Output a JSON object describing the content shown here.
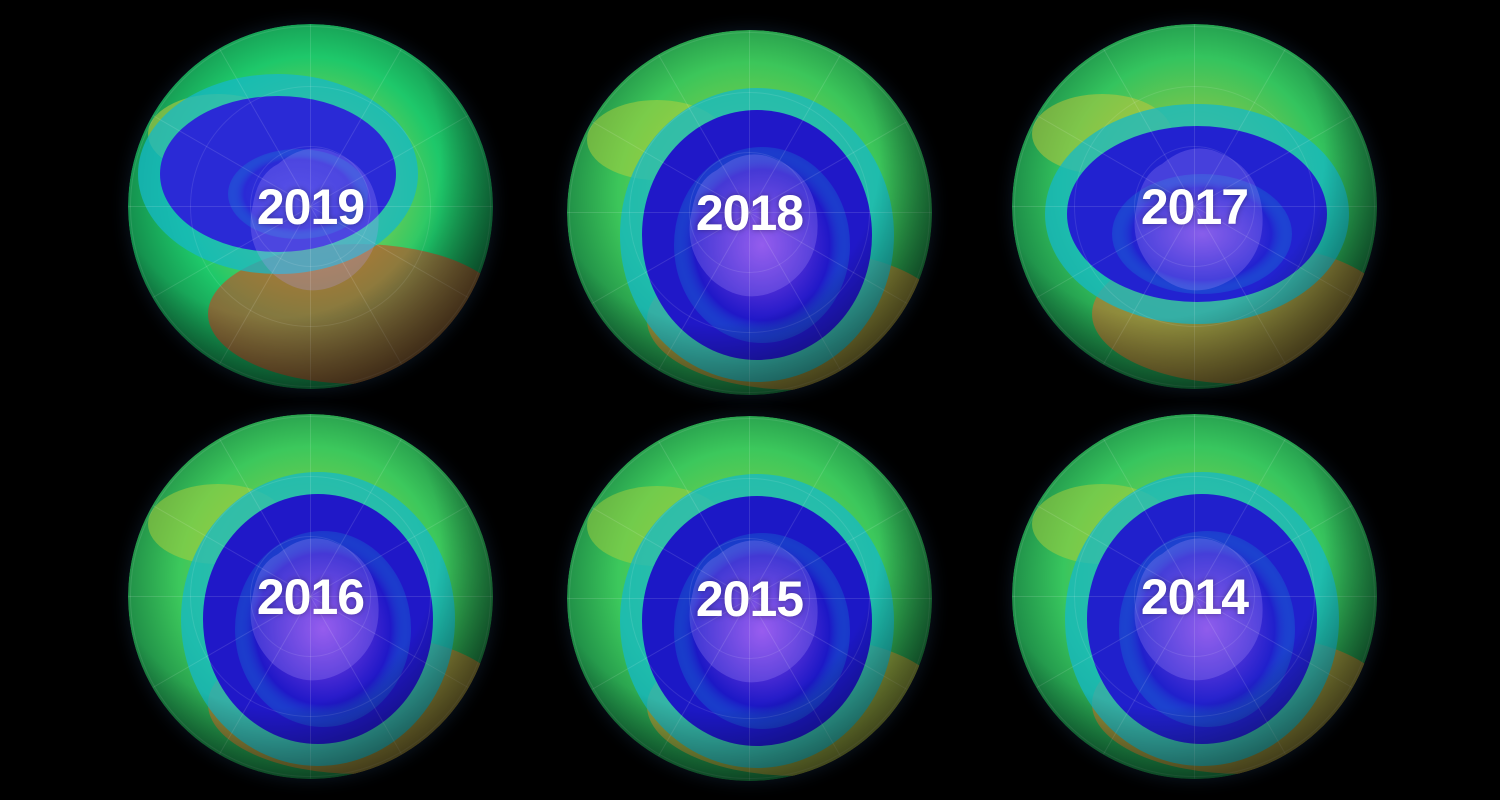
{
  "maps": [
    {
      "year": "2019",
      "hole": "small",
      "palette": {
        "rim": "#1ec86a",
        "mid": "#d6d23a",
        "hot": "#d8381e",
        "hole": "#2a2ad6",
        "core": "#3838e0"
      }
    },
    {
      "year": "2018",
      "hole": "large",
      "palette": {
        "rim": "#3cc65a",
        "mid": "#b8d23a",
        "hot": "#e07a28",
        "hole": "#2018c8",
        "core": "#8a48e8"
      }
    },
    {
      "year": "2017",
      "hole": "medium",
      "palette": {
        "rim": "#34c45e",
        "mid": "#c8c838",
        "hot": "#e06a26",
        "hole": "#2222d0",
        "core": "#7a4ae4"
      }
    },
    {
      "year": "2016",
      "hole": "large",
      "palette": {
        "rim": "#3cc85c",
        "mid": "#b4d03a",
        "hot": "#e07228",
        "hole": "#2018c8",
        "core": "#8c48e8"
      }
    },
    {
      "year": "2015",
      "hole": "large",
      "palette": {
        "rim": "#3cc85c",
        "mid": "#a8d03c",
        "hot": "#d89a30",
        "hole": "#1c18c6",
        "core": "#9048ea"
      }
    },
    {
      "year": "2014",
      "hole": "large",
      "palette": {
        "rim": "#38c65e",
        "mid": "#b0d03a",
        "hot": "#e07a28",
        "hole": "#2020cc",
        "core": "#8448e6"
      }
    }
  ]
}
